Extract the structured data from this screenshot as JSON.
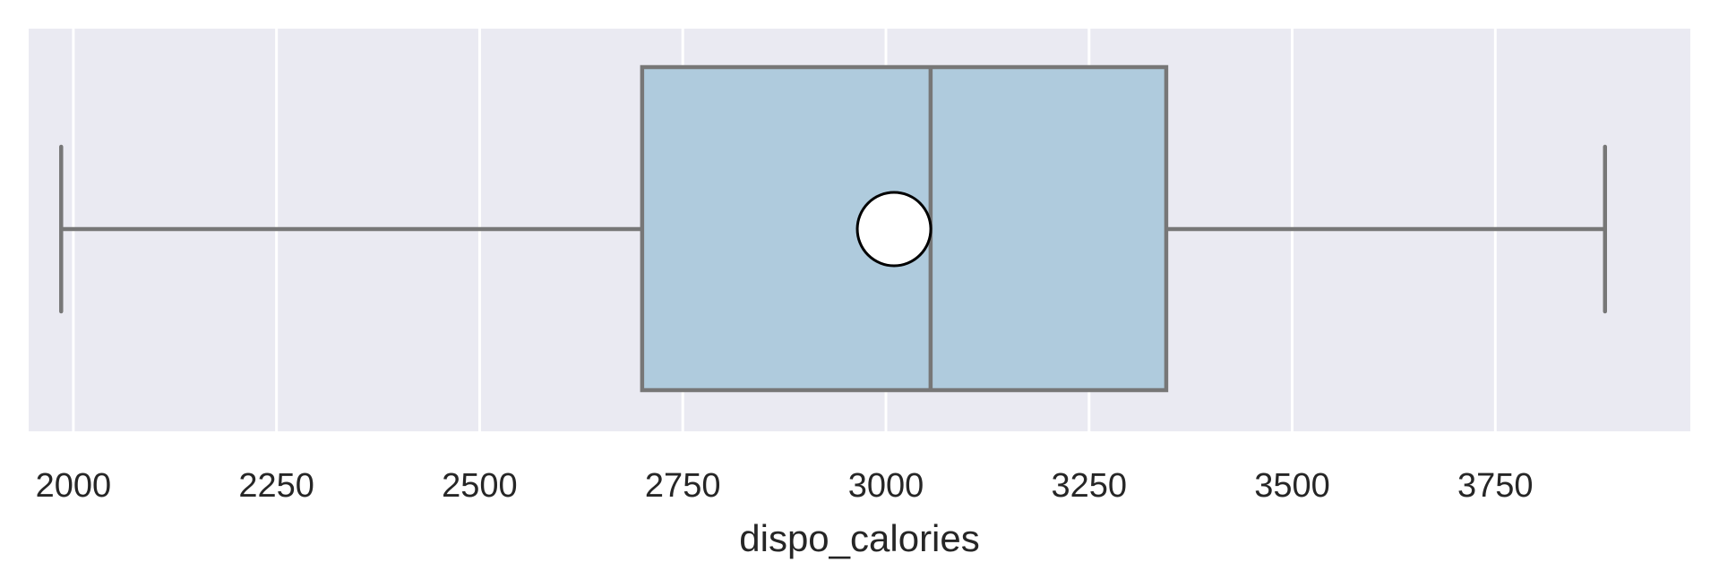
{
  "chart_data": {
    "type": "box",
    "orientation": "horizontal",
    "xlabel": "dispo_calories",
    "ylabel": "",
    "xlim": [
      1945,
      3990
    ],
    "xticks": [
      2000,
      2250,
      2500,
      2750,
      3000,
      3250,
      3500,
      3750
    ],
    "xtick_labels": [
      "2000",
      "2250",
      "2500",
      "2750",
      "3000",
      "3250",
      "3500",
      "3750"
    ],
    "grid": true,
    "box": {
      "whisker_low": 1985,
      "q1": 2700,
      "median": 3055,
      "q3": 3345,
      "whisker_high": 3885,
      "mean": 3010
    },
    "colors": {
      "background": "#eaeaf2",
      "grid": "#ffffff",
      "box_fill": "#afcbdd",
      "box_edge": "#777777",
      "mean_fill": "#ffffff",
      "mean_edge": "#000000",
      "text": "#262626"
    }
  }
}
